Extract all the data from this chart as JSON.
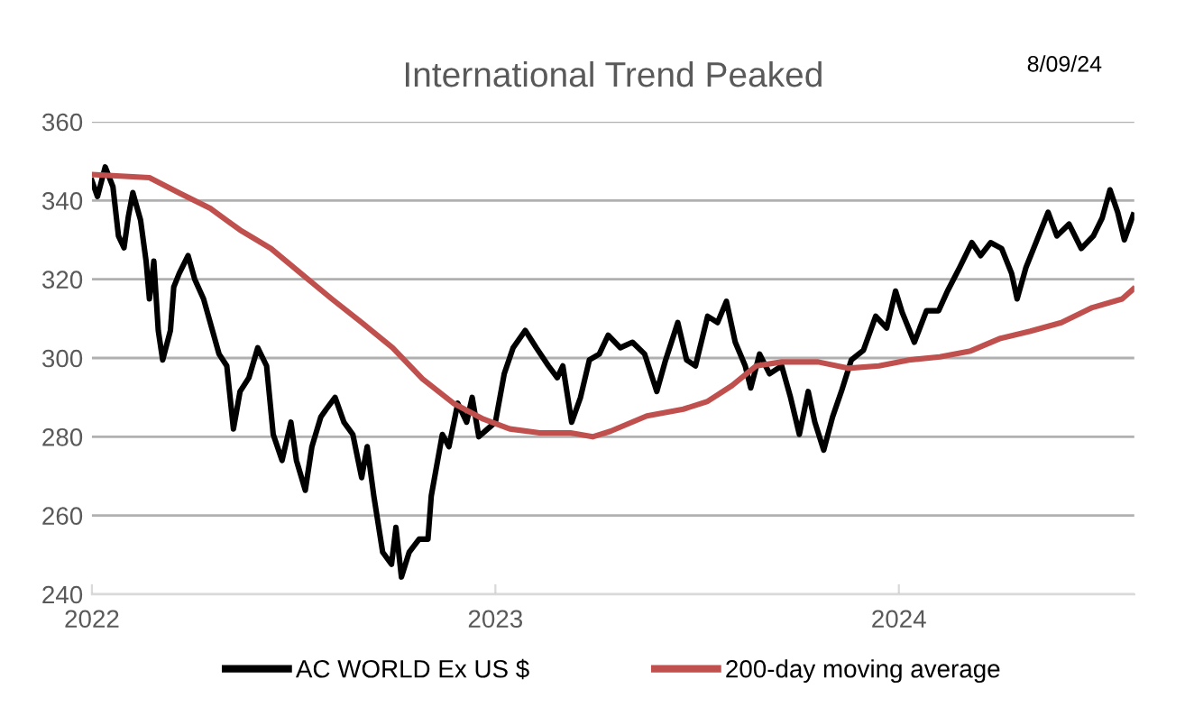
{
  "chart_data": {
    "type": "line",
    "title": "International Trend Peaked",
    "annotations": [
      "8/09/24"
    ],
    "xlim": [
      "2022-01-01",
      "2024-08-01"
    ],
    "xticks": [
      {
        "value": "2022-01-01",
        "label": "2022"
      },
      {
        "value": "2023-01-01",
        "label": "2023"
      },
      {
        "value": "2024-01-01",
        "label": "2024"
      }
    ],
    "ylim": [
      240,
      360
    ],
    "yticks": [
      240,
      260,
      280,
      300,
      320,
      340,
      360
    ],
    "grid": "y",
    "legend": "bottom",
    "marker": "none",
    "line_style": "solid",
    "series": [
      {
        "name": "AC WORLD Ex US $",
        "color": "#000000",
        "x": [
          "2022-01-01",
          "2022-01-06",
          "2022-01-13",
          "2022-01-20",
          "2022-01-25",
          "2022-01-30",
          "2022-02-03",
          "2022-02-07",
          "2022-02-14",
          "2022-02-19",
          "2022-02-22",
          "2022-02-26",
          "2022-03-02",
          "2022-03-06",
          "2022-03-13",
          "2022-03-16",
          "2022-03-21",
          "2022-03-29",
          "2022-04-04",
          "2022-04-12",
          "2022-04-20",
          "2022-04-26",
          "2022-05-03",
          "2022-05-09",
          "2022-05-15",
          "2022-05-23",
          "2022-05-31",
          "2022-06-08",
          "2022-06-14",
          "2022-06-22",
          "2022-06-30",
          "2022-07-05",
          "2022-07-13",
          "2022-07-19",
          "2022-07-27",
          "2022-08-01",
          "2022-08-09",
          "2022-08-17",
          "2022-08-25",
          "2022-09-02",
          "2022-09-07",
          "2022-09-13",
          "2022-09-21",
          "2022-09-29",
          "2022-10-03",
          "2022-10-08",
          "2022-10-15",
          "2022-10-24",
          "2022-11-01",
          "2022-11-04",
          "2022-11-14",
          "2022-11-20",
          "2022-11-28",
          "2022-12-06",
          "2022-12-11",
          "2022-12-17",
          "2022-12-25",
          "2023-01-01",
          "2023-01-09",
          "2023-01-17",
          "2023-01-28",
          "2023-02-07",
          "2023-02-18",
          "2023-02-26",
          "2023-03-03",
          "2023-03-11",
          "2023-03-19",
          "2023-03-27",
          "2023-04-05",
          "2023-04-13",
          "2023-04-24",
          "2023-05-05",
          "2023-05-16",
          "2023-05-27",
          "2023-06-04",
          "2023-06-15",
          "2023-06-23",
          "2023-07-01",
          "2023-07-12",
          "2023-07-21",
          "2023-07-29",
          "2023-08-06",
          "2023-08-15",
          "2023-08-20",
          "2023-08-28",
          "2023-09-06",
          "2023-09-17",
          "2023-09-25",
          "2023-10-03",
          "2023-10-11",
          "2023-10-17",
          "2023-10-25",
          "2023-11-02",
          "2023-11-10",
          "2023-11-19",
          "2023-11-30",
          "2023-12-11",
          "2023-12-21",
          "2023-12-29",
          "2024-01-04",
          "2024-01-15",
          "2024-01-26",
          "2024-02-06",
          "2024-02-14",
          "2024-02-25",
          "2024-03-07",
          "2024-03-15",
          "2024-03-24",
          "2024-04-03",
          "2024-04-12",
          "2024-04-17",
          "2024-04-25",
          "2024-05-04",
          "2024-05-15",
          "2024-05-23",
          "2024-06-03",
          "2024-06-14",
          "2024-06-25",
          "2024-07-03",
          "2024-07-10",
          "2024-07-17",
          "2024-07-23",
          "2024-07-31"
        ],
        "values": [
          345,
          341,
          348.5,
          343.5,
          331,
          328,
          336,
          342,
          335,
          324.6,
          315,
          324.6,
          307,
          299.5,
          307,
          318,
          321.5,
          326,
          320,
          315,
          307,
          301,
          298,
          282,
          291.5,
          295,
          302.6,
          298,
          280.6,
          274,
          283.7,
          274,
          266.4,
          277.5,
          285,
          287,
          290,
          283.7,
          280.6,
          269.6,
          277.5,
          265,
          250.7,
          247.6,
          257,
          244.4,
          250.7,
          254,
          254,
          265,
          280.6,
          277.5,
          288.5,
          283.7,
          290,
          280,
          282,
          283.7,
          296,
          302.6,
          307,
          302.6,
          298,
          295,
          298,
          283.7,
          290,
          299.5,
          301,
          305.8,
          302.6,
          304,
          301,
          291.5,
          299.5,
          309,
          299.5,
          298,
          310.6,
          309,
          314.4,
          304,
          298,
          292.4,
          301,
          296,
          298,
          290,
          280.6,
          291.5,
          283.7,
          276.6,
          285,
          291.5,
          299.5,
          302,
          310.6,
          307.6,
          317,
          311.6,
          304,
          312,
          312,
          317,
          323,
          329.3,
          326,
          329.3,
          327.8,
          321.5,
          315,
          323,
          329.3,
          337,
          331,
          334,
          327.8,
          331,
          335.6,
          342.7,
          337,
          330,
          336.3
        ]
      },
      {
        "name": "200-day moving average",
        "color": "#c0504d",
        "x": [
          "2022-01-01",
          "2022-02-22",
          "2022-03-21",
          "2022-04-18",
          "2022-05-15",
          "2022-06-12",
          "2022-07-09",
          "2022-08-06",
          "2022-09-02",
          "2022-09-30",
          "2022-10-27",
          "2022-11-24",
          "2022-12-21",
          "2023-01-14",
          "2023-02-10",
          "2023-03-10",
          "2023-03-30",
          "2023-04-15",
          "2023-05-18",
          "2023-06-20",
          "2023-07-12",
          "2023-08-03",
          "2023-08-25",
          "2023-09-17",
          "2023-10-20",
          "2023-11-16",
          "2023-12-14",
          "2024-01-10",
          "2024-02-07",
          "2024-03-06",
          "2024-04-02",
          "2024-04-29",
          "2024-05-27",
          "2024-06-24",
          "2024-07-21",
          "2024-07-31"
        ],
        "values": [
          346.6,
          345.8,
          341.9,
          338,
          332.5,
          327.8,
          321.5,
          315,
          309,
          302.6,
          294.7,
          288.5,
          284.5,
          282,
          281,
          281,
          280,
          281.4,
          285.3,
          287,
          289,
          293,
          298,
          299,
          299,
          297.4,
          298,
          299.5,
          300.3,
          301.8,
          305,
          306.8,
          309,
          312.8,
          315,
          317.5
        ]
      }
    ]
  }
}
